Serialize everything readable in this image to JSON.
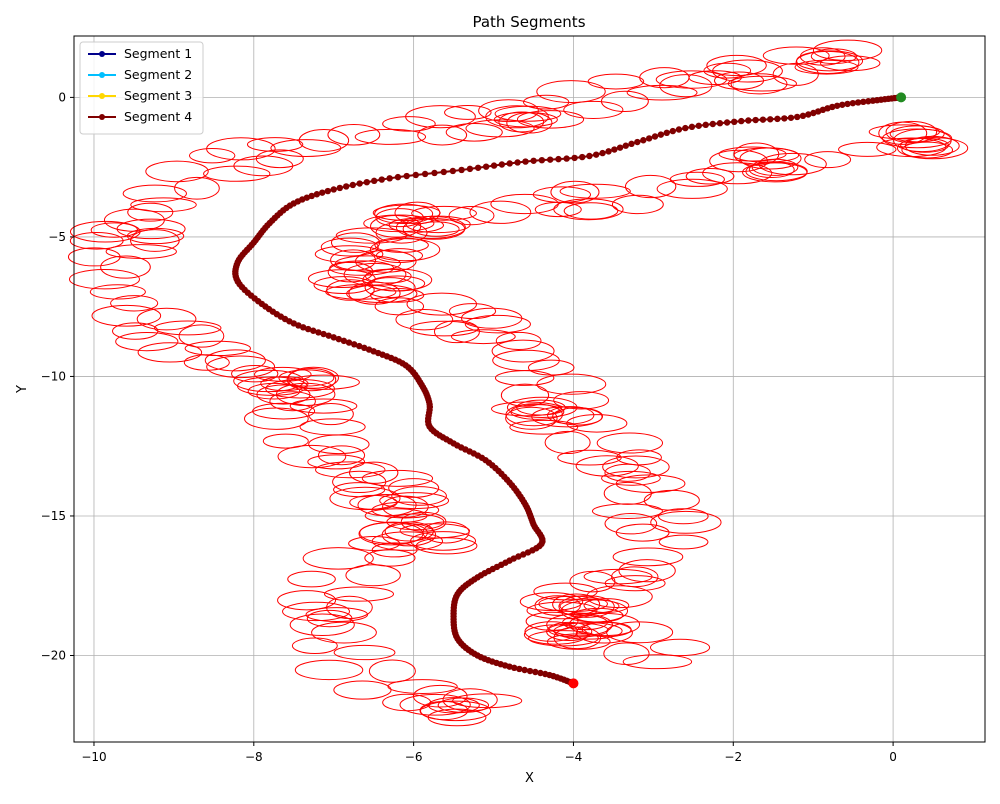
{
  "chart_data": {
    "type": "line",
    "title": "Path Segments",
    "xlabel": "X",
    "ylabel": "Y",
    "xlim": [
      -10.25,
      1.15
    ],
    "ylim": [
      -23.1,
      2.2
    ],
    "xticks": [
      -10,
      -8,
      -6,
      -4,
      -2,
      0
    ],
    "yticks": [
      -20,
      -15,
      -10,
      -5,
      0
    ],
    "grid": true,
    "legend_position": "top-left",
    "series": [
      {
        "name": "Segment 1",
        "color": "#00008b",
        "points": [
          [
            0.1,
            0.0
          ]
        ]
      },
      {
        "name": "Segment 2",
        "color": "#00bfff",
        "points": [
          [
            0.1,
            0.0
          ]
        ]
      },
      {
        "name": "Segment 3",
        "color": "#ffd700",
        "points": [
          [
            0.1,
            0.0
          ]
        ]
      },
      {
        "name": "Segment 4",
        "color": "#800000",
        "points": [
          [
            0.1,
            0.0
          ],
          [
            -0.2,
            -0.1
          ],
          [
            -0.7,
            -0.3
          ],
          [
            -1.2,
            -0.7
          ],
          [
            -1.9,
            -0.85
          ],
          [
            -2.6,
            -1.1
          ],
          [
            -3.2,
            -1.6
          ],
          [
            -3.8,
            -2.1
          ],
          [
            -4.6,
            -2.3
          ],
          [
            -5.4,
            -2.6
          ],
          [
            -6.3,
            -2.9
          ],
          [
            -7.0,
            -3.3
          ],
          [
            -7.5,
            -3.8
          ],
          [
            -7.8,
            -4.5
          ],
          [
            -8.0,
            -5.2
          ],
          [
            -8.2,
            -5.9
          ],
          [
            -8.2,
            -6.6
          ],
          [
            -7.9,
            -7.4
          ],
          [
            -7.5,
            -8.1
          ],
          [
            -7.0,
            -8.6
          ],
          [
            -6.5,
            -9.1
          ],
          [
            -6.1,
            -9.6
          ],
          [
            -5.9,
            -10.3
          ],
          [
            -5.8,
            -11.0
          ],
          [
            -5.8,
            -11.8
          ],
          [
            -5.5,
            -12.4
          ],
          [
            -5.1,
            -13.0
          ],
          [
            -4.8,
            -13.8
          ],
          [
            -4.6,
            -14.6
          ],
          [
            -4.5,
            -15.3
          ],
          [
            -4.4,
            -16.0
          ],
          [
            -4.8,
            -16.6
          ],
          [
            -5.2,
            -17.2
          ],
          [
            -5.45,
            -17.8
          ],
          [
            -5.5,
            -18.6
          ],
          [
            -5.45,
            -19.4
          ],
          [
            -5.2,
            -20.0
          ],
          [
            -4.8,
            -20.4
          ],
          [
            -4.3,
            -20.7
          ],
          [
            -4.0,
            -21.0
          ]
        ]
      }
    ],
    "ellipse_color": "#ff0000",
    "ellipse_radii": [
      0.4,
      0.38
    ],
    "start_marker": {
      "x": 0.1,
      "y": 0.0,
      "color": "#228b22"
    },
    "end_marker": {
      "x": -4.0,
      "y": -21.0,
      "color": "#ff0000"
    }
  }
}
